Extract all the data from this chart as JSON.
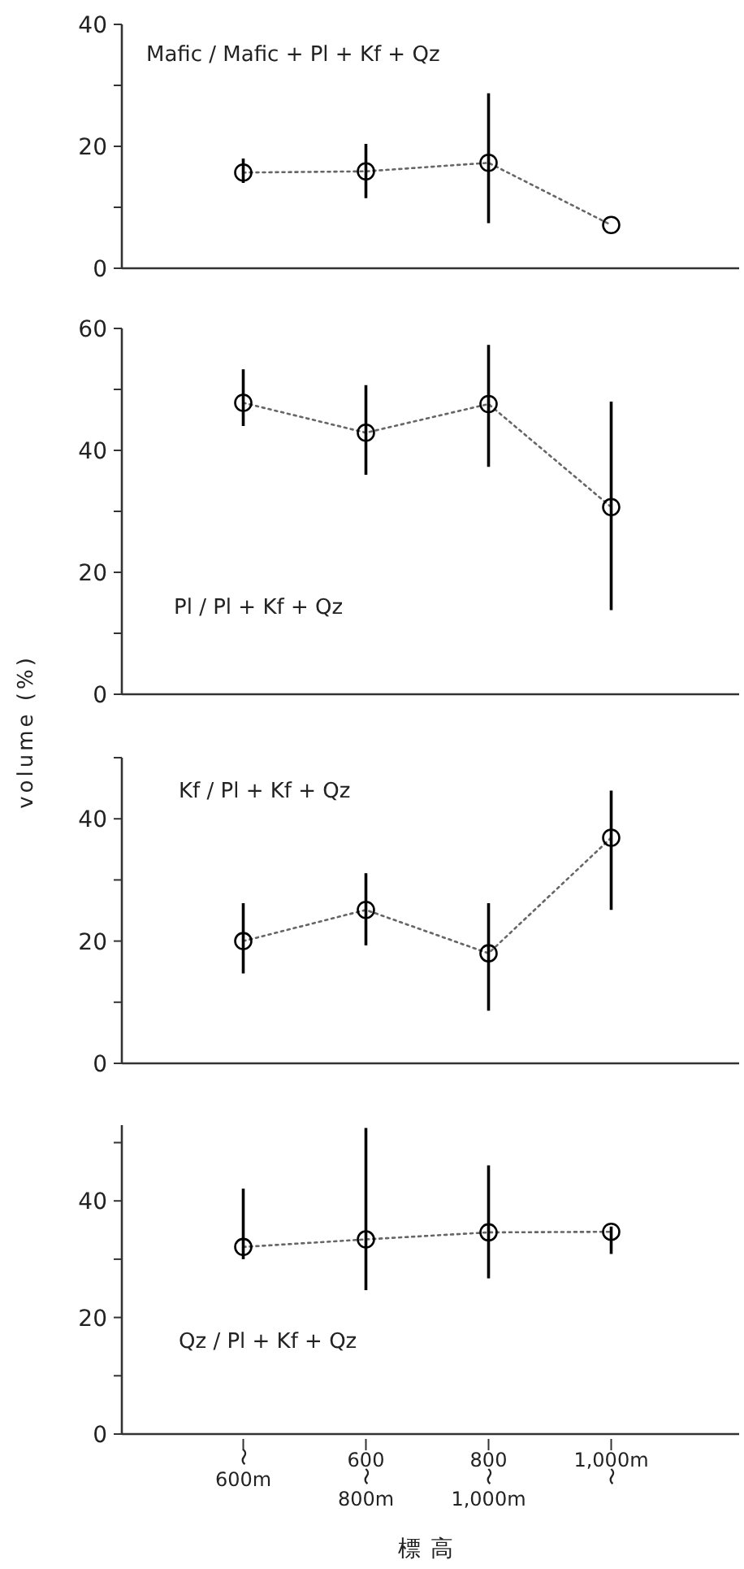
{
  "chart_data": [
    {
      "type": "line",
      "title": "Mafic / Mafic + Pl + Kf + Qz",
      "categories": [
        "〜600m",
        "600〜800m",
        "800〜1,000m",
        "1,000m〜"
      ],
      "series": [
        {
          "color": "#000000",
          "values": [
            15.7,
            15.9,
            17.3,
            7.1
          ],
          "errors": [
            [
              14,
              18
            ],
            [
              11.5,
              20.4
            ],
            [
              7.4,
              28.7
            ],
            null
          ]
        }
      ],
      "ylim": [
        0,
        40
      ],
      "yticks": [
        0,
        {
          "value": 10,
          "label": null
        },
        20,
        {
          "value": 30,
          "label": null
        },
        40
      ],
      "marker": "circle",
      "line_style": "dotted",
      "grid": false,
      "tick_labels": "y"
    },
    {
      "type": "line",
      "title": "Pl / Pl + Kf + Qz",
      "ylabel": "volume (%)",
      "categories": [
        "〜600m",
        "600〜800m",
        "800〜1,000m",
        "1,000m〜"
      ],
      "series": [
        {
          "color": "#000000",
          "values": [
            47.8,
            42.9,
            47.6,
            30.7
          ],
          "errors": [
            [
              44,
              53.3
            ],
            [
              36,
              50.7
            ],
            [
              37.3,
              57.3
            ],
            [
              13.8,
              48
            ]
          ]
        }
      ],
      "ylim": [
        0,
        60
      ],
      "yticks": [
        0,
        {
          "value": 10,
          "label": null
        },
        20,
        {
          "value": 30,
          "label": null
        },
        40,
        {
          "value": 50,
          "label": null
        },
        60
      ],
      "marker": "circle",
      "line_style": "dotted",
      "grid": false,
      "tick_labels": "y"
    },
    {
      "type": "line",
      "title": "Kf / Pl + Kf + Qz",
      "categories": [
        "〜600m",
        "600〜800m",
        "800〜1,000m",
        "1,000m〜"
      ],
      "series": [
        {
          "color": "#000000",
          "values": [
            20.0,
            25.1,
            18.0,
            36.9
          ],
          "errors": [
            [
              14.7,
              26.2
            ],
            [
              19.3,
              31.1
            ],
            [
              8.6,
              26.2
            ],
            [
              25.1,
              44.6
            ]
          ]
        }
      ],
      "ylim": [
        0,
        50
      ],
      "yticks": [
        0,
        {
          "value": 10,
          "label": null
        },
        20,
        {
          "value": 30,
          "label": null
        },
        40,
        {
          "value": 50,
          "label": null
        }
      ],
      "marker": "circle",
      "line_style": "dotted",
      "grid": false,
      "tick_labels": "y"
    },
    {
      "type": "line",
      "title": "Qz / Pl + Kf + Qz",
      "xlabel": "標高",
      "categories": [
        "〜600m",
        "600〜800m",
        "800〜1,000m",
        "1,000m〜"
      ],
      "series": [
        {
          "color": "#000000",
          "values": [
            32.1,
            33.4,
            34.6,
            34.7
          ],
          "errors": [
            [
              30,
              42.1
            ],
            [
              24.7,
              52.5
            ],
            [
              26.7,
              46.1
            ],
            [
              30.9,
              35.6
            ]
          ]
        }
      ],
      "ylim": [
        0,
        53
      ],
      "yticks": [
        0,
        {
          "value": 10,
          "label": null
        },
        20,
        {
          "value": 30,
          "label": null
        },
        40,
        {
          "value": 50,
          "label": null
        }
      ],
      "marker": "circle",
      "line_style": "dotted",
      "grid": false
    }
  ]
}
